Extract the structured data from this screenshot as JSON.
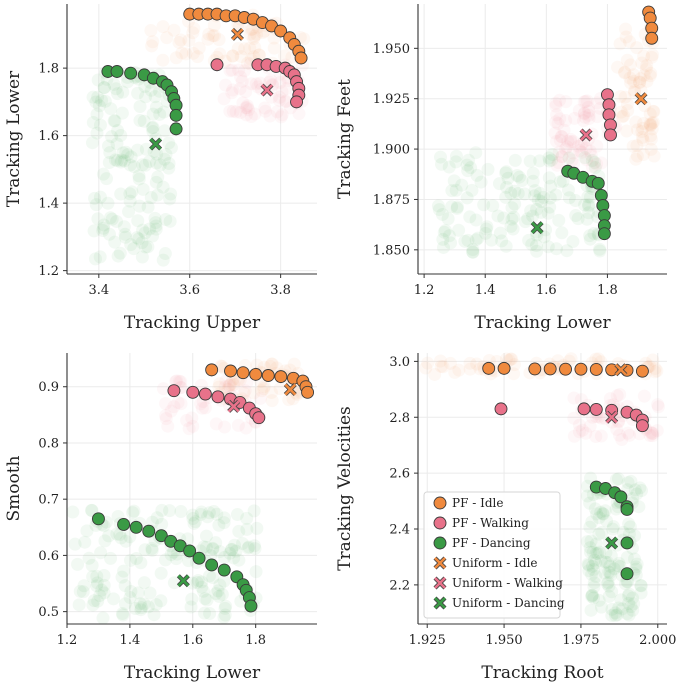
{
  "colors": {
    "idle": "#f08a3e",
    "walking": "#e8728a",
    "dancing": "#3a9a45",
    "idle_cloud": "#f4a262",
    "walking_cloud": "#ee8aa0",
    "dancing_cloud": "#4aa552"
  },
  "legend": {
    "placement": "lower-left of bottom-right panel",
    "entries": [
      {
        "label": "PF - Idle",
        "marker": "circle",
        "group": "idle"
      },
      {
        "label": "PF - Walking",
        "marker": "circle",
        "group": "walking"
      },
      {
        "label": "PF - Dancing",
        "marker": "circle",
        "group": "dancing"
      },
      {
        "label": "Uniform - Idle",
        "marker": "x",
        "group": "idle"
      },
      {
        "label": "Uniform - Walking",
        "marker": "x",
        "group": "walking"
      },
      {
        "label": "Uniform - Dancing",
        "marker": "x",
        "group": "dancing"
      }
    ]
  },
  "chart_data": [
    {
      "type": "scatter",
      "xlabel": "Tracking Upper",
      "ylabel": "Tracking Lower",
      "xlim": [
        3.33,
        3.88
      ],
      "ylim": [
        1.19,
        1.99
      ],
      "xticks": [
        "3.4",
        "3.6",
        "3.8"
      ],
      "yticks": [
        "1.2",
        "1.4",
        "1.6",
        "1.8"
      ],
      "grid": true,
      "series": [
        {
          "name": "PF - Idle",
          "group": "idle",
          "kind": "pareto",
          "points": [
            [
              3.6,
              1.96
            ],
            [
              3.62,
              1.96
            ],
            [
              3.64,
              1.96
            ],
            [
              3.66,
              1.96
            ],
            [
              3.68,
              1.955
            ],
            [
              3.7,
              1.955
            ],
            [
              3.72,
              1.95
            ],
            [
              3.74,
              1.945
            ],
            [
              3.76,
              1.935
            ],
            [
              3.78,
              1.925
            ],
            [
              3.8,
              1.91
            ],
            [
              3.82,
              1.89
            ],
            [
              3.83,
              1.87
            ],
            [
              3.84,
              1.85
            ],
            [
              3.845,
              1.83
            ]
          ]
        },
        {
          "name": "PF - Walking",
          "group": "walking",
          "kind": "pareto",
          "points": [
            [
              3.66,
              1.81
            ],
            [
              3.75,
              1.81
            ],
            [
              3.77,
              1.81
            ],
            [
              3.79,
              1.805
            ],
            [
              3.81,
              1.8
            ],
            [
              3.82,
              1.79
            ],
            [
              3.83,
              1.78
            ],
            [
              3.835,
              1.76
            ],
            [
              3.84,
              1.74
            ],
            [
              3.84,
              1.72
            ],
            [
              3.835,
              1.7
            ]
          ]
        },
        {
          "name": "PF - Dancing",
          "group": "dancing",
          "kind": "pareto",
          "points": [
            [
              3.42,
              1.79
            ],
            [
              3.44,
              1.79
            ],
            [
              3.47,
              1.785
            ],
            [
              3.5,
              1.78
            ],
            [
              3.52,
              1.77
            ],
            [
              3.54,
              1.76
            ],
            [
              3.55,
              1.75
            ],
            [
              3.56,
              1.73
            ],
            [
              3.565,
              1.71
            ],
            [
              3.57,
              1.69
            ],
            [
              3.57,
              1.66
            ],
            [
              3.57,
              1.62
            ]
          ]
        },
        {
          "name": "Uniform - Idle",
          "group": "idle",
          "kind": "uniform",
          "points": [
            [
              3.705,
              1.9
            ]
          ]
        },
        {
          "name": "Uniform - Walking",
          "group": "walking",
          "kind": "uniform",
          "points": [
            [
              3.77,
              1.735
            ]
          ]
        },
        {
          "name": "Uniform - Dancing",
          "group": "dancing",
          "kind": "uniform",
          "points": [
            [
              3.525,
              1.575
            ]
          ]
        }
      ]
    },
    {
      "type": "scatter",
      "xlabel": "Tracking Lower",
      "ylabel": "Tracking Feet",
      "xlim": [
        1.18,
        1.995
      ],
      "ylim": [
        1.838,
        1.972
      ],
      "xticks": [
        "1.2",
        "1.4",
        "1.6",
        "1.8"
      ],
      "yticks": [
        "1.850",
        "1.875",
        "1.900",
        "1.925",
        "1.950"
      ],
      "grid": true,
      "series": [
        {
          "name": "PF - Idle",
          "group": "idle",
          "kind": "pareto",
          "points": [
            [
              1.935,
              1.968
            ],
            [
              1.94,
              1.965
            ],
            [
              1.945,
              1.96
            ],
            [
              1.945,
              1.955
            ]
          ]
        },
        {
          "name": "PF - Walking",
          "group": "walking",
          "kind": "pareto",
          "points": [
            [
              1.8,
              1.927
            ],
            [
              1.805,
              1.922
            ],
            [
              1.805,
              1.917
            ],
            [
              1.81,
              1.912
            ],
            [
              1.81,
              1.907
            ]
          ]
        },
        {
          "name": "PF - Dancing",
          "group": "dancing",
          "kind": "pareto",
          "points": [
            [
              1.67,
              1.889
            ],
            [
              1.69,
              1.888
            ],
            [
              1.72,
              1.886
            ],
            [
              1.75,
              1.884
            ],
            [
              1.77,
              1.883
            ],
            [
              1.78,
              1.877
            ],
            [
              1.785,
              1.872
            ],
            [
              1.79,
              1.867
            ],
            [
              1.79,
              1.862
            ],
            [
              1.79,
              1.858
            ]
          ]
        },
        {
          "name": "Uniform - Idle",
          "group": "idle",
          "kind": "uniform",
          "points": [
            [
              1.91,
              1.925
            ]
          ]
        },
        {
          "name": "Uniform - Walking",
          "group": "walking",
          "kind": "uniform",
          "points": [
            [
              1.73,
              1.907
            ]
          ]
        },
        {
          "name": "Uniform - Dancing",
          "group": "dancing",
          "kind": "uniform",
          "points": [
            [
              1.57,
              1.861
            ]
          ]
        }
      ]
    },
    {
      "type": "scatter",
      "xlabel": "Tracking Lower",
      "ylabel": "Smooth",
      "xlim": [
        1.2,
        1.995
      ],
      "ylim": [
        0.478,
        0.96
      ],
      "xticks": [
        "1.2",
        "1.4",
        "1.6",
        "1.8"
      ],
      "yticks": [
        "0.5",
        "0.6",
        "0.7",
        "0.8",
        "0.9"
      ],
      "grid": true,
      "series": [
        {
          "name": "PF - Idle",
          "group": "idle",
          "kind": "pareto",
          "points": [
            [
              1.66,
              0.93
            ],
            [
              1.72,
              0.928
            ],
            [
              1.76,
              0.925
            ],
            [
              1.8,
              0.922
            ],
            [
              1.84,
              0.92
            ],
            [
              1.88,
              0.918
            ],
            [
              1.92,
              0.915
            ],
            [
              1.95,
              0.91
            ],
            [
              1.96,
              0.9
            ],
            [
              1.965,
              0.89
            ]
          ]
        },
        {
          "name": "PF - Walking",
          "group": "walking",
          "kind": "pareto",
          "points": [
            [
              1.54,
              0.893
            ],
            [
              1.6,
              0.89
            ],
            [
              1.64,
              0.887
            ],
            [
              1.68,
              0.882
            ],
            [
              1.72,
              0.878
            ],
            [
              1.75,
              0.872
            ],
            [
              1.78,
              0.862
            ],
            [
              1.8,
              0.852
            ],
            [
              1.81,
              0.845
            ]
          ]
        },
        {
          "name": "PF - Dancing",
          "group": "dancing",
          "kind": "pareto",
          "points": [
            [
              1.3,
              0.665
            ],
            [
              1.38,
              0.655
            ],
            [
              1.42,
              0.65
            ],
            [
              1.46,
              0.643
            ],
            [
              1.5,
              0.635
            ],
            [
              1.53,
              0.625
            ],
            [
              1.56,
              0.617
            ],
            [
              1.59,
              0.608
            ],
            [
              1.62,
              0.595
            ],
            [
              1.66,
              0.583
            ],
            [
              1.7,
              0.574
            ],
            [
              1.74,
              0.562
            ],
            [
              1.76,
              0.548
            ],
            [
              1.77,
              0.538
            ],
            [
              1.78,
              0.525
            ],
            [
              1.785,
              0.51
            ]
          ]
        },
        {
          "name": "Uniform - Idle",
          "group": "idle",
          "kind": "uniform",
          "points": [
            [
              1.91,
              0.895
            ]
          ]
        },
        {
          "name": "Uniform - Walking",
          "group": "walking",
          "kind": "uniform",
          "points": [
            [
              1.73,
              0.865
            ]
          ]
        },
        {
          "name": "Uniform - Dancing",
          "group": "dancing",
          "kind": "uniform",
          "points": [
            [
              1.57,
              0.555
            ]
          ]
        }
      ]
    },
    {
      "type": "scatter",
      "xlabel": "Tracking Root",
      "ylabel": "Tracking Velocities",
      "xlim": [
        1.922,
        2.003
      ],
      "ylim": [
        2.06,
        3.03
      ],
      "xticks": [
        "1.925",
        "1.950",
        "1.975",
        "2.000"
      ],
      "yticks": [
        "2.2",
        "2.4",
        "2.6",
        "2.8",
        "3.0"
      ],
      "grid": true,
      "series": [
        {
          "name": "PF - Idle",
          "group": "idle",
          "kind": "pareto",
          "points": [
            [
              1.945,
              2.975
            ],
            [
              1.95,
              2.975
            ],
            [
              1.96,
              2.973
            ],
            [
              1.965,
              2.973
            ],
            [
              1.97,
              2.972
            ],
            [
              1.975,
              2.972
            ],
            [
              1.98,
              2.971
            ],
            [
              1.985,
              2.97
            ],
            [
              1.99,
              2.968
            ],
            [
              1.995,
              2.965
            ]
          ]
        },
        {
          "name": "PF - Walking",
          "group": "walking",
          "kind": "pareto",
          "points": [
            [
              1.949,
              2.83
            ],
            [
              1.976,
              2.83
            ],
            [
              1.98,
              2.828
            ],
            [
              1.985,
              2.825
            ],
            [
              1.99,
              2.818
            ],
            [
              1.993,
              2.808
            ],
            [
              1.995,
              2.79
            ],
            [
              1.995,
              2.77
            ]
          ]
        },
        {
          "name": "PF - Dancing",
          "group": "dancing",
          "kind": "pareto",
          "points": [
            [
              1.98,
              2.55
            ],
            [
              1.983,
              2.545
            ],
            [
              1.986,
              2.53
            ],
            [
              1.988,
              2.515
            ],
            [
              1.99,
              2.48
            ],
            [
              1.99,
              2.47
            ],
            [
              1.99,
              2.35
            ],
            [
              1.99,
              2.24
            ]
          ]
        },
        {
          "name": "Uniform - Idle",
          "group": "idle",
          "kind": "uniform",
          "points": [
            [
              1.988,
              2.97
            ]
          ]
        },
        {
          "name": "Uniform - Walking",
          "group": "walking",
          "kind": "uniform",
          "points": [
            [
              1.985,
              2.8
            ]
          ]
        },
        {
          "name": "Uniform - Dancing",
          "group": "dancing",
          "kind": "uniform",
          "points": [
            [
              1.985,
              2.35
            ]
          ]
        }
      ]
    }
  ]
}
